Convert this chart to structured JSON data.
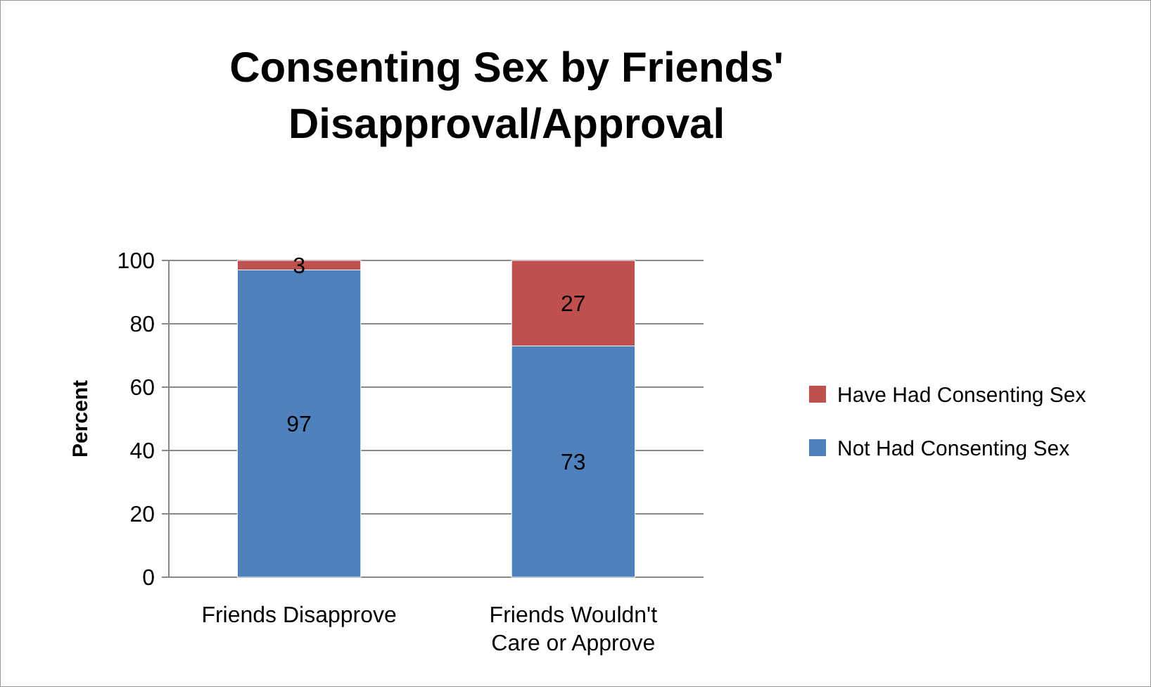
{
  "chart_data": {
    "type": "bar",
    "title": "Consenting Sex by Friends' Disapproval/Approval",
    "ylabel": "Percent",
    "categories": [
      "Friends Disapprove",
      "Friends Wouldn't Care or Approve"
    ],
    "stacked": true,
    "series": [
      {
        "name": "Not Had Consenting Sex",
        "color": "#4f81bd",
        "values": [
          97,
          73
        ]
      },
      {
        "name": "Have Had Consenting Sex",
        "color": "#c0504d",
        "values": [
          3,
          27
        ]
      }
    ],
    "ylim": [
      0,
      100
    ],
    "yticks": [
      0,
      20,
      40,
      60,
      80,
      100
    ],
    "grid": "y",
    "legend": "right",
    "data_labels": true
  }
}
